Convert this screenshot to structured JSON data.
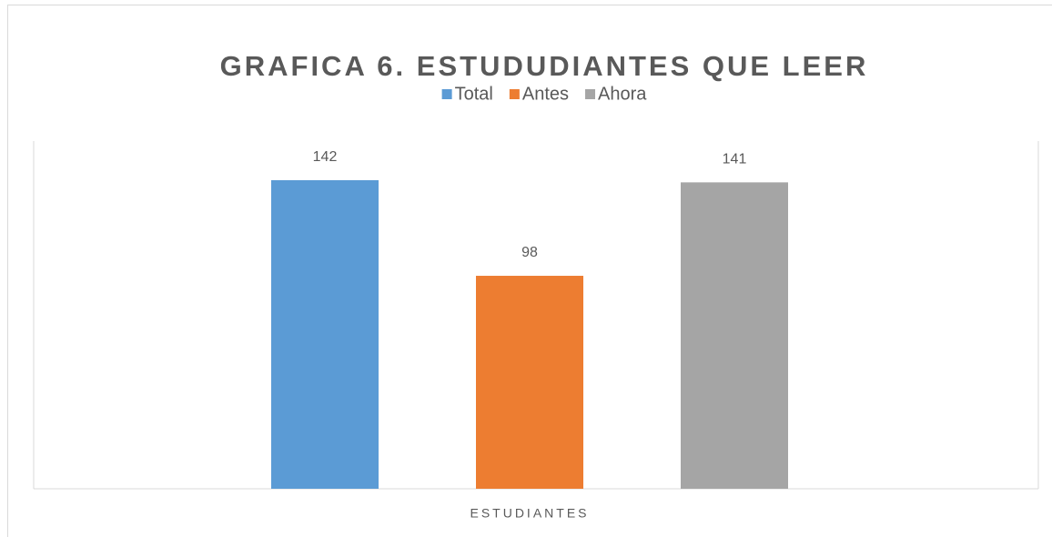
{
  "chart_data": {
    "type": "bar",
    "title": "GRAFICA 6. ESTUDUDIANTES QUE LEER",
    "categories": [
      "ESTUDIANTES"
    ],
    "series": [
      {
        "name": "Total",
        "color": "#5b9bd5",
        "values": [
          142
        ]
      },
      {
        "name": "Antes",
        "color": "#ed7d31",
        "values": [
          98
        ]
      },
      {
        "name": "Ahora",
        "color": "#a5a5a5",
        "values": [
          141
        ]
      }
    ],
    "ylim": [
      0,
      160
    ],
    "legend": "top"
  }
}
